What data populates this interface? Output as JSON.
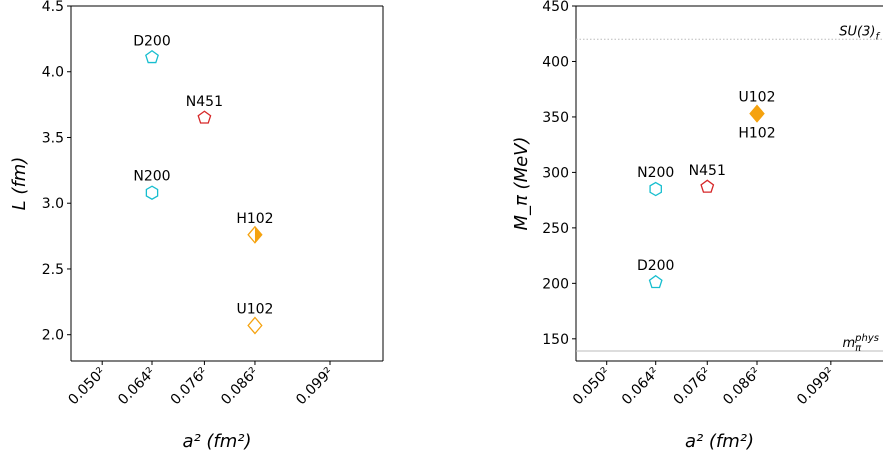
{
  "chart_data": [
    {
      "type": "scatter",
      "xlabel": "a² (fm²)",
      "ylabel": "L (fm)",
      "ylim": [
        1.8,
        4.5
      ],
      "y_ticks": [
        "2.0",
        "2.5",
        "3.0",
        "3.5",
        "4.0",
        "4.5"
      ],
      "x_ticks": [
        "0.050²",
        "0.064²",
        "0.076²",
        "0.086²",
        "0.099²"
      ],
      "x_tick_values": [
        0.0025,
        0.004096,
        0.005776,
        0.007396,
        0.009801
      ],
      "grid": false,
      "points": [
        {
          "label": "D200",
          "x": 0.004096,
          "y": 4.11,
          "marker": "pentagon",
          "color": "#17becf",
          "fill": "none"
        },
        {
          "label": "N451",
          "x": 0.005776,
          "y": 3.65,
          "marker": "pentagon",
          "color": "#d62728",
          "fill": "none"
        },
        {
          "label": "N200",
          "x": 0.004096,
          "y": 3.08,
          "marker": "hexagon",
          "color": "#17becf",
          "fill": "none"
        },
        {
          "label": "H102",
          "x": 0.007396,
          "y": 2.76,
          "marker": "diamond",
          "color": "#f5a20f",
          "fill": "right-half"
        },
        {
          "label": "U102",
          "x": 0.007396,
          "y": 2.07,
          "marker": "diamond",
          "color": "#f5a20f",
          "fill": "none"
        }
      ]
    },
    {
      "type": "scatter",
      "xlabel": "a² (fm²)",
      "ylabel": "M_π (MeV)",
      "ylim": [
        130,
        450
      ],
      "y_ticks": [
        "150",
        "200",
        "250",
        "300",
        "350",
        "400",
        "450"
      ],
      "x_ticks": [
        "0.050²",
        "0.064²",
        "0.076²",
        "0.086²",
        "0.099²"
      ],
      "x_tick_values": [
        0.0025,
        0.004096,
        0.005776,
        0.007396,
        0.009801
      ],
      "grid": false,
      "reference_lines": [
        {
          "label": "SU(3)",
          "subscript": "f",
          "y": 420
        },
        {
          "label": "m",
          "subscript": "π",
          "superscript": "phys",
          "y": 139
        }
      ],
      "points": [
        {
          "label": "N200",
          "x": 0.004096,
          "y": 285,
          "marker": "hexagon",
          "color": "#17becf",
          "fill": "none"
        },
        {
          "label": "N451",
          "x": 0.005776,
          "y": 287,
          "marker": "pentagon",
          "color": "#d62728",
          "fill": "none"
        },
        {
          "label": "D200",
          "x": 0.004096,
          "y": 201,
          "marker": "pentagon",
          "color": "#17becf",
          "fill": "none"
        },
        {
          "label": "U102",
          "x": 0.007396,
          "y": 353,
          "marker": "diamond",
          "color": "#f5a20f",
          "fill": "right-half"
        },
        {
          "label": "H102",
          "x": 0.007396,
          "y": 353,
          "marker": "diamond",
          "color": "#f5a20f",
          "fill": "left-half"
        }
      ]
    }
  ]
}
